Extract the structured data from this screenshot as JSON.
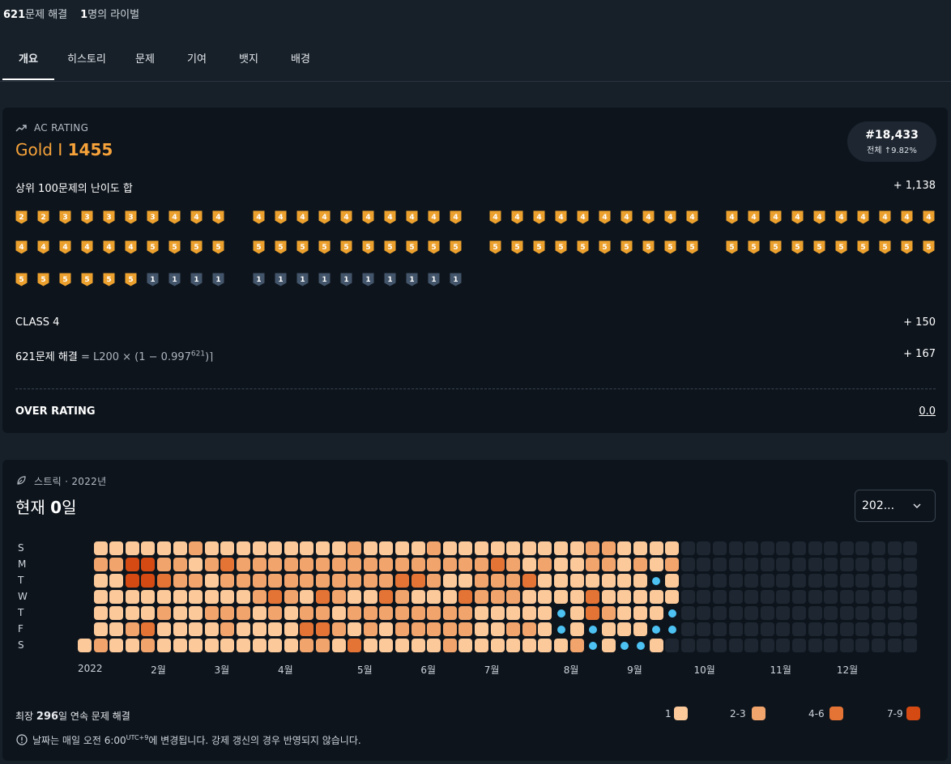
{
  "top": {
    "solved_count": "621",
    "solved_suffix": "문제 해결",
    "rivals_count": "1",
    "rivals_suffix": "명의 라이벌"
  },
  "tabs": [
    "개요",
    "히스토리",
    "문제",
    "기여",
    "뱃지",
    "배경"
  ],
  "rating": {
    "label": "AC RATING",
    "tier": "Gold I",
    "value": "1455",
    "rank": "#18,433",
    "rank_sub": "전체 ↑9.82%",
    "top100_label": "상위 100문제의 난이도 합",
    "top100_value": "+ 1,138",
    "class_label": "CLASS 4",
    "class_value": "+ 150",
    "solved_label_bold": "621문제 해결",
    "solved_formula": "= L200 × (1 − 0.997",
    "solved_formula_exp": "621",
    "solved_formula_end": ")⌉",
    "solved_value": "+ 167",
    "over_label": "OVER RATING",
    "over_value": "0.0",
    "badge_rows": [
      [
        "g2",
        "g2",
        "g3",
        "g3",
        "g3",
        "g3",
        "g3",
        "g4",
        "g4",
        "g4",
        "g4",
        "g4",
        "g4",
        "g4",
        "g4",
        "g4",
        "g4",
        "g4",
        "g4",
        "g4",
        "g4",
        "g4",
        "g4",
        "g4",
        "g4",
        "g4",
        "g4",
        "g4",
        "g4",
        "g4",
        "g4",
        "g4",
        "g4",
        "g4",
        "g4",
        "g4",
        "g4",
        "g4",
        "g4",
        "g4"
      ],
      [
        "g4",
        "g4",
        "g4",
        "g4",
        "g4",
        "g4",
        "g5",
        "g5",
        "g5",
        "g5",
        "g5",
        "g5",
        "g5",
        "g5",
        "g5",
        "g5",
        "g5",
        "g5",
        "g5",
        "g5",
        "g5",
        "g5",
        "g5",
        "g5",
        "g5",
        "g5",
        "g5",
        "g5",
        "g5",
        "g5",
        "g5",
        "g5",
        "g5",
        "g5",
        "g5",
        "g5",
        "g5",
        "g5",
        "g5",
        "g5"
      ],
      [
        "g5",
        "g5",
        "g5",
        "g5",
        "g5",
        "g5",
        "s1",
        "s1",
        "s1",
        "s1",
        "s1",
        "s1",
        "s1",
        "s1",
        "s1",
        "s1",
        "s1",
        "s1",
        "s1",
        "s1"
      ]
    ]
  },
  "streak": {
    "label": "스트릭 · 2022년",
    "current_prefix": "현재 ",
    "current_value": "0",
    "current_suffix": "일",
    "year_select": "202...",
    "day_labels": [
      "S",
      "M",
      "T",
      "W",
      "T",
      "F",
      "S"
    ],
    "months": [
      "2022",
      "2월",
      "3월",
      "4월",
      "5월",
      "6월",
      "7월",
      "8월",
      "9월",
      "10월",
      "11월",
      "12월"
    ],
    "max_prefix": "최장 ",
    "max_value": "296",
    "max_suffix": "일 연속 문제 해결",
    "notice_main": "날짜는 매일 오전 6:00",
    "notice_sup": "UTC+9",
    "notice_end": "에 변경됩니다. 강제 갱신의 경우 반영되지 않습니다.",
    "legend": [
      "1",
      "2-3",
      "4-6",
      "7-9"
    ],
    "colors": {
      "l1": "#fbc99a",
      "l2": "#f1a46c",
      "l3": "#e47435",
      "l4": "#d44a12",
      "empty": "#1d2631",
      "freeze": "#4cc1f2"
    },
    "weeks": [
      "......1",
      "1211112",
      "1211111",
      "1441121",
      "1441132",
      "1231211",
      "1221111",
      "2121111",
      "1211211",
      "1321221",
      "1221211",
      "1222111",
      "1223211",
      "1222111",
      "1221232",
      "1223232",
      "1222121",
      "2221213",
      "1221221",
      "1223211",
      "1232221",
      "1231221",
      "2221221",
      "1211222",
      "1213221",
      "1222111",
      "1322111",
      "1222121",
      "1131121",
      "1211111",
      "1111FF1",
      "1111112",
      "22133FF",
      "2211211",
      "111111F",
      "121111F",
      "11F11F1",
      "1211FF."
    ]
  }
}
